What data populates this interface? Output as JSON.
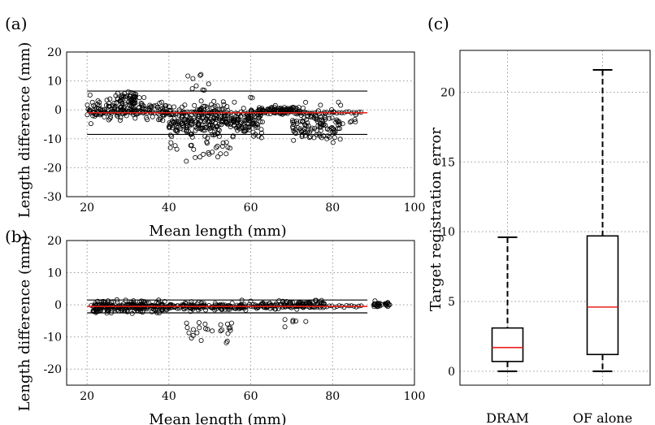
{
  "chart_data": [
    {
      "panel": "(a)",
      "type": "scatter",
      "xlabel": "Mean length (mm)",
      "ylabel": "Length difference (mm)",
      "xlim": [
        15,
        100
      ],
      "ylim": [
        -30,
        20
      ],
      "xticks": [
        "20",
        "40",
        "60",
        "80",
        "100"
      ],
      "yticks": [
        "20",
        "10",
        "0",
        "-10",
        "-20",
        "-30"
      ],
      "grid": true,
      "mean_line": -1,
      "limit_lines": [
        6.5,
        -8.5
      ],
      "line_colors": {
        "mean": "#e8211b",
        "limits": "#000000",
        "markers": "#000000"
      },
      "clusters": [
        {
          "x_range": [
            20,
            40
          ],
          "y_mean": 0,
          "y_spread": 3,
          "count": 160
        },
        {
          "x_range": [
            27,
            32
          ],
          "y_mean": 4,
          "y_spread": 2,
          "count": 40
        },
        {
          "x_range": [
            40,
            63
          ],
          "y_mean": -4,
          "y_spread": 5,
          "count": 320
        },
        {
          "x_range": [
            44,
            50
          ],
          "y_mean": 9,
          "y_spread": 4,
          "count": 10
        },
        {
          "x_range": [
            40,
            55
          ],
          "y_mean": -15,
          "y_spread": 3,
          "count": 20
        },
        {
          "x_range": [
            62,
            72
          ],
          "y_mean": 0,
          "y_spread": 1,
          "count": 80
        },
        {
          "x_range": [
            70,
            82
          ],
          "y_mean": -5,
          "y_spread": 5,
          "count": 120
        },
        {
          "x_range": [
            82,
            86
          ],
          "y_mean": -4,
          "y_spread": 1.5,
          "count": 6
        }
      ]
    },
    {
      "panel": "(b)",
      "type": "scatter",
      "xlabel": "Mean length (mm)",
      "ylabel": "Length difference (mm)",
      "xlim": [
        15,
        100
      ],
      "ylim": [
        -25,
        20
      ],
      "xticks": [
        "20",
        "40",
        "60",
        "80",
        "100"
      ],
      "yticks": [
        "20",
        "10",
        "0",
        "-10",
        "-20"
      ],
      "grid": true,
      "mean_line": -0.5,
      "limit_lines": [
        1.5,
        -2.5
      ],
      "line_colors": {
        "mean": "#e8211b",
        "limits": "#000000",
        "markers": "#000000"
      },
      "clusters": [
        {
          "x_range": [
            21,
            40
          ],
          "y_mean": -0.5,
          "y_spread": 1.5,
          "count": 200
        },
        {
          "x_range": [
            40,
            62
          ],
          "y_mean": -0.5,
          "y_spread": 1,
          "count": 120
        },
        {
          "x_range": [
            44,
            56
          ],
          "y_mean": -7,
          "y_spread": 3,
          "count": 25
        },
        {
          "x_range": [
            62,
            78
          ],
          "y_mean": 0,
          "y_spread": 1,
          "count": 100
        },
        {
          "x_range": [
            68,
            74
          ],
          "y_mean": -5,
          "y_spread": 2,
          "count": 6
        },
        {
          "x_range": [
            90,
            94
          ],
          "y_mean": 0,
          "y_spread": 0.6,
          "count": 30
        }
      ]
    },
    {
      "panel": "(c)",
      "type": "box",
      "ylabel": "Target registration error",
      "ylim": [
        -1,
        23
      ],
      "yticks": [
        "20",
        "15",
        "10",
        "5",
        "0"
      ],
      "grid": true,
      "categories": [
        "DRAM",
        "OF alone"
      ],
      "boxes": [
        {
          "name": "DRAM",
          "min": 0,
          "q1": 0.7,
          "median": 1.7,
          "q3": 3.1,
          "max": 9.6
        },
        {
          "name": "OF alone",
          "min": 0,
          "q1": 1.2,
          "median": 4.6,
          "q3": 9.7,
          "max": 21.6
        }
      ],
      "median_color": "#e8211b"
    }
  ]
}
